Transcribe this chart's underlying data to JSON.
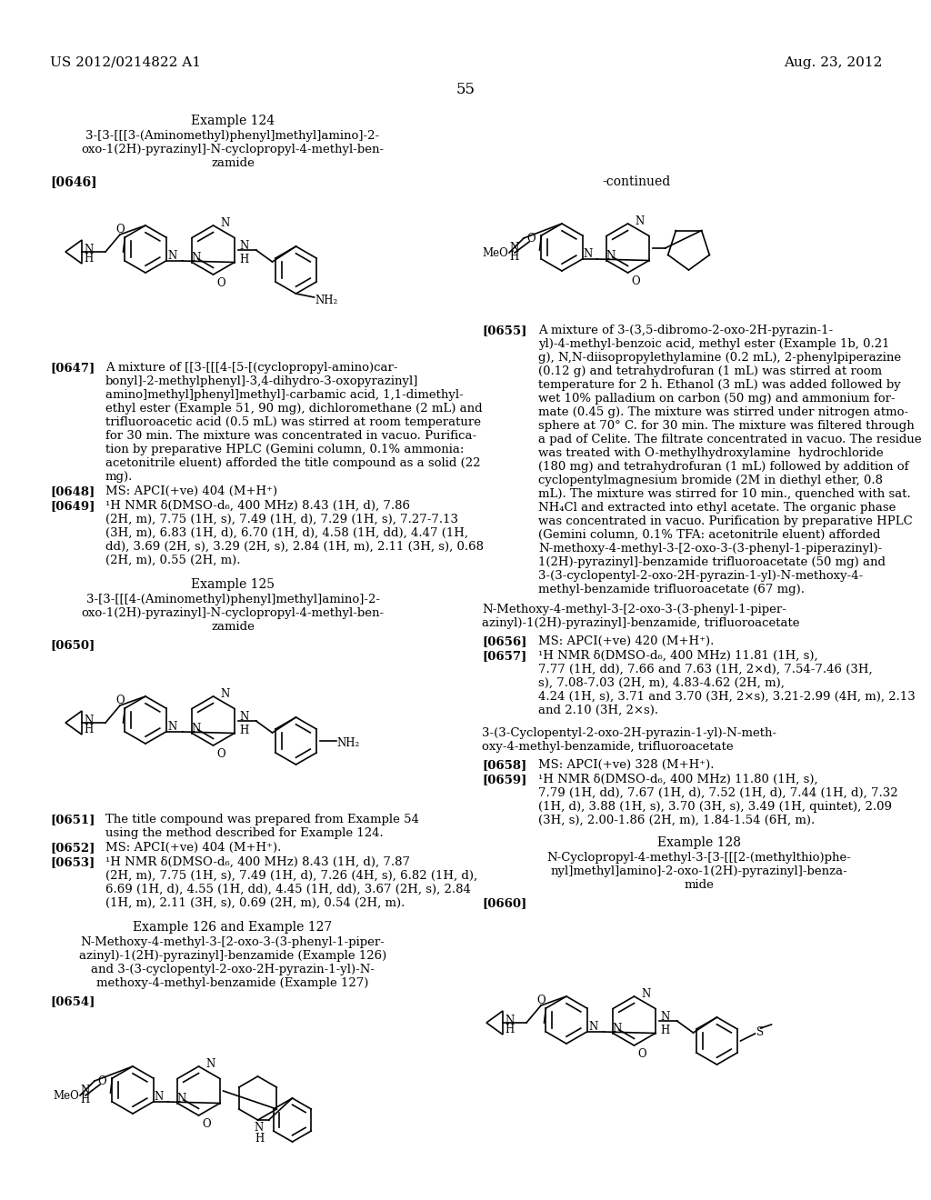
{
  "bg_color": "#ffffff",
  "header_left": "US 2012/0214822 A1",
  "header_right": "Aug. 23, 2012",
  "page_number": "55"
}
